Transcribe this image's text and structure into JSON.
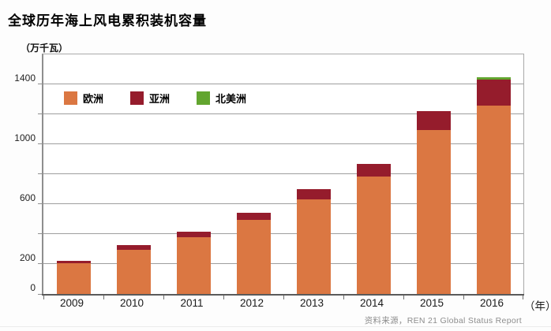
{
  "title": "全球历年海上风电累积装机容量",
  "y_unit": "（万千瓦）",
  "x_unit": "（年）",
  "source": "资料来源，REN 21 Global Status Report",
  "colors": {
    "europe": "#DB7742",
    "asia": "#951C2C",
    "north_america": "#62A52F",
    "gridline": "#9e9e9e",
    "axis": "#5a5a5a",
    "source_text": "#8d8d8d"
  },
  "chart_data": {
    "type": "bar",
    "stacked": true,
    "title": "全球历年海上风电累积装机容量",
    "ylabel": "（万千瓦）",
    "xlabel": "（年）",
    "categories": [
      "2009",
      "2010",
      "2011",
      "2012",
      "2013",
      "2014",
      "2015",
      "2016"
    ],
    "series": [
      {
        "name": "欧洲",
        "color": "#DB7742",
        "values": [
          205,
          295,
          380,
          495,
          630,
          785,
          1095,
          1260
        ]
      },
      {
        "name": "亚洲",
        "color": "#951C2C",
        "values": [
          15,
          30,
          35,
          45,
          70,
          85,
          125,
          170
        ]
      },
      {
        "name": "北美洲",
        "color": "#62A52F",
        "values": [
          0,
          0,
          0,
          0,
          0,
          0,
          0,
          15
        ]
      }
    ],
    "totals": [
      220,
      325,
      415,
      540,
      700,
      870,
      1220,
      1445
    ],
    "ylim": [
      0,
      1600
    ],
    "grid_interval": 200,
    "labeled_ticks": [
      0,
      200,
      600,
      1000,
      1400
    ],
    "grid": true,
    "legend_position": "top-left-inside"
  }
}
